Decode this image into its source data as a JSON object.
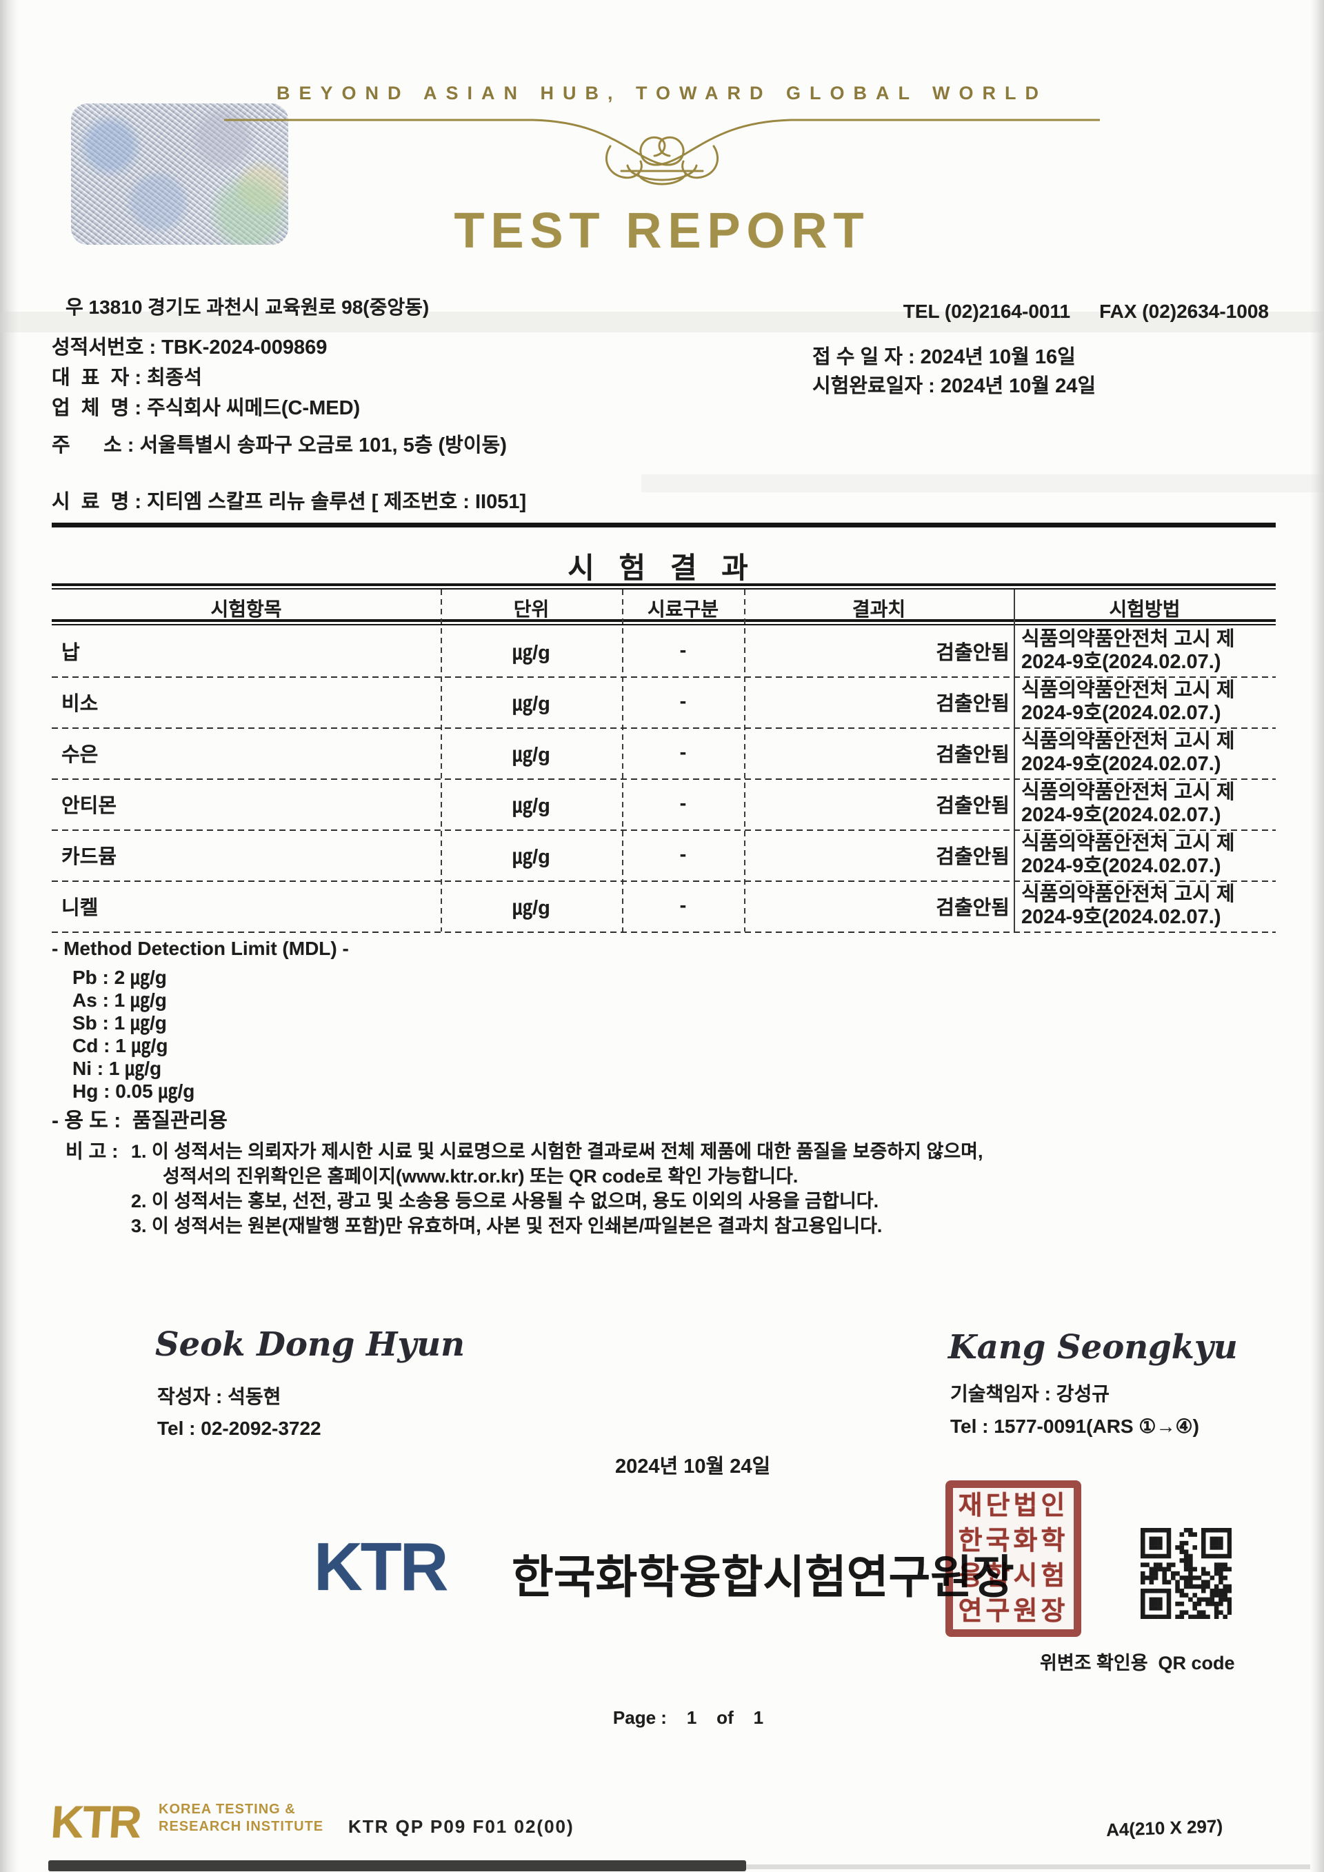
{
  "header": {
    "tagline": "BEYOND ASIAN HUB, TOWARD GLOBAL WORLD",
    "title": "TEST REPORT",
    "address": "우 13810 경기도 과천시 교육원로 98(중앙동)",
    "tel": "TEL (02)2164-0011",
    "fax": "FAX (02)2634-1008"
  },
  "meta": {
    "left": [
      "성적서번호 : TBK-2024-009869",
      "대  표  자 : 최종석",
      "업  체  명 : 주식회사 씨메드(C-MED)",
      "주      소 : 서울특별시 송파구 오금로 101, 5층 (방이동)",
      "시  료  명 : 지티엠 스칼프 리뉴 솔루션 [ 제조번호 : II051]"
    ],
    "right": [
      "접 수 일 자 : 2024년 10월 16일",
      "시험완료일자 : 2024년 10월 24일"
    ]
  },
  "results": {
    "title": "시 험 결 과",
    "columns": [
      "시험항목",
      "단위",
      "시료구분",
      "결과치",
      "시험방법"
    ],
    "rows": [
      {
        "item": "납",
        "unit": "㎍/g",
        "sample": "-",
        "result": "검출안됨",
        "method1": "식품의약품안전처 고시 제",
        "method2": "2024-9호(2024.02.07.)"
      },
      {
        "item": "비소",
        "unit": "㎍/g",
        "sample": "-",
        "result": "검출안됨",
        "method1": "식품의약품안전처 고시 제",
        "method2": "2024-9호(2024.02.07.)"
      },
      {
        "item": "수은",
        "unit": "㎍/g",
        "sample": "-",
        "result": "검출안됨",
        "method1": "식품의약품안전처 고시 제",
        "method2": "2024-9호(2024.02.07.)"
      },
      {
        "item": "안티몬",
        "unit": "㎍/g",
        "sample": "-",
        "result": "검출안됨",
        "method1": "식품의약품안전처 고시 제",
        "method2": "2024-9호(2024.02.07.)"
      },
      {
        "item": "카드뮴",
        "unit": "㎍/g",
        "sample": "-",
        "result": "검출안됨",
        "method1": "식품의약품안전처 고시 제",
        "method2": "2024-9호(2024.02.07.)"
      },
      {
        "item": "니켈",
        "unit": "㎍/g",
        "sample": "-",
        "result": "검출안됨",
        "method1": "식품의약품안전처 고시 제",
        "method2": "2024-9호(2024.02.07.)"
      }
    ]
  },
  "mdl": {
    "title": "- Method Detection Limit (MDL) -",
    "items": [
      "Pb : 2 ㎍/g",
      "As : 1 ㎍/g",
      "Sb : 1 ㎍/g",
      "Cd : 1 ㎍/g",
      "Ni : 1 ㎍/g",
      "Hg : 0.05 ㎍/g"
    ],
    "usage": "- 용 도 :  품질관리용"
  },
  "notes": {
    "label": "비 고 :",
    "lines": [
      {
        "text": "1. 이 성적서는 의뢰자가 제시한 시료 및 시료명으로 시험한 결과로써 전체 제품에 대한 품질을 보증하지 않으며,",
        "cont": false
      },
      {
        "text": "성적서의 진위확인은 홈페이지(www.ktr.or.kr) 또는 QR code로 확인 가능합니다.",
        "cont": true
      },
      {
        "text": "2. 이 성적서는 홍보, 선전, 광고 및 소송용 등으로 사용될 수 없으며, 용도 이외의 사용을 금합니다.",
        "cont": false
      },
      {
        "text": "3. 이 성적서는 원본(재발행 포함)만 유효하며, 사본 및 전자 인쇄본/파일본은 결과치 참고용입니다.",
        "cont": false
      }
    ]
  },
  "signatures": {
    "left": {
      "script": "Seok Dong Hyun",
      "name": "작성자 : 석동현",
      "tel": "Tel : 02-2092-3722"
    },
    "right": {
      "script": "Kang Seongkyu",
      "name": "기술책임자 : 강성규",
      "tel": "Tel : 1577-0091(ARS ①→④)"
    }
  },
  "issue": {
    "date": "2024년 10월 24일",
    "org_abbr": "KTR",
    "org_name": "한국화학융합시험연구원장",
    "seal_rows": [
      "재단법인",
      "한국화학",
      "융합시험",
      "연구원장"
    ],
    "qr_caption": "위변조 확인용  QR code"
  },
  "footer": {
    "page_line": "Page :    1    of    1",
    "logo": "KTR",
    "logo_lines": [
      "KOREA TESTING &",
      "RESEARCH INSTITUTE"
    ],
    "doc_code": "KTR QP P09 F01 02(00)",
    "paper": "A4(210 X 297)"
  },
  "colors": {
    "header_gold": "#a3904a",
    "seal_red": "#993931",
    "ktr_blue": "#31507c",
    "footer_gold": "#b8933c"
  }
}
